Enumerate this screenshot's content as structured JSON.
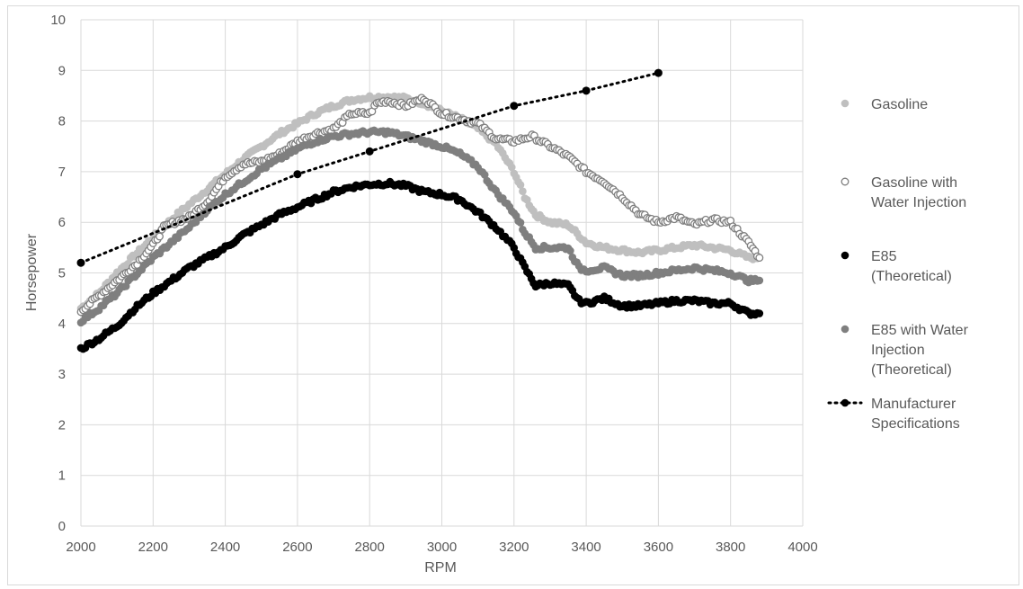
{
  "chart_data": {
    "type": "scatter",
    "title": "",
    "xlabel": "RPM",
    "ylabel": "Horsepower",
    "xlim": [
      2000,
      4000
    ],
    "ylim": [
      0,
      10
    ],
    "x_ticks": [
      "2000",
      "2200",
      "2400",
      "2600",
      "2800",
      "3000",
      "3200",
      "3400",
      "3600",
      "3800",
      "4000"
    ],
    "y_ticks": [
      "0",
      "1",
      "2",
      "3",
      "4",
      "5",
      "6",
      "7",
      "8",
      "9",
      "10"
    ],
    "grid": true,
    "legend_position": "right",
    "series": [
      {
        "name": "Gasoline",
        "marker": "filled-circle",
        "color": "#bfbfbf",
        "points": [
          [
            2000,
            4.3
          ],
          [
            2050,
            4.6
          ],
          [
            2100,
            5.0
          ],
          [
            2150,
            5.35
          ],
          [
            2200,
            5.7
          ],
          [
            2250,
            6.05
          ],
          [
            2300,
            6.35
          ],
          [
            2350,
            6.65
          ],
          [
            2400,
            6.95
          ],
          [
            2450,
            7.25
          ],
          [
            2500,
            7.5
          ],
          [
            2550,
            7.75
          ],
          [
            2600,
            7.95
          ],
          [
            2650,
            8.15
          ],
          [
            2700,
            8.3
          ],
          [
            2750,
            8.42
          ],
          [
            2800,
            8.47
          ],
          [
            2850,
            8.48
          ],
          [
            2900,
            8.45
          ],
          [
            2950,
            8.35
          ],
          [
            3000,
            8.2
          ],
          [
            3050,
            8.05
          ],
          [
            3100,
            7.85
          ],
          [
            3150,
            7.55
          ],
          [
            3200,
            7.0
          ],
          [
            3230,
            6.5
          ],
          [
            3260,
            6.15
          ],
          [
            3300,
            6.0
          ],
          [
            3350,
            5.95
          ],
          [
            3400,
            5.6
          ],
          [
            3450,
            5.5
          ],
          [
            3500,
            5.45
          ],
          [
            3550,
            5.4
          ],
          [
            3600,
            5.45
          ],
          [
            3650,
            5.5
          ],
          [
            3700,
            5.55
          ],
          [
            3750,
            5.5
          ],
          [
            3800,
            5.45
          ],
          [
            3850,
            5.3
          ],
          [
            3880,
            5.3
          ]
        ]
      },
      {
        "name": "Gasoline with Water Injection",
        "marker": "open-circle",
        "color": "#7f7f7f",
        "points": [
          [
            2000,
            4.25
          ],
          [
            2050,
            4.55
          ],
          [
            2100,
            4.85
          ],
          [
            2150,
            5.15
          ],
          [
            2200,
            5.55
          ],
          [
            2230,
            5.9
          ],
          [
            2260,
            6.0
          ],
          [
            2300,
            6.1
          ],
          [
            2350,
            6.4
          ],
          [
            2400,
            6.9
          ],
          [
            2450,
            7.15
          ],
          [
            2500,
            7.2
          ],
          [
            2550,
            7.35
          ],
          [
            2600,
            7.6
          ],
          [
            2650,
            7.75
          ],
          [
            2700,
            7.85
          ],
          [
            2750,
            8.15
          ],
          [
            2800,
            8.15
          ],
          [
            2820,
            8.35
          ],
          [
            2850,
            8.4
          ],
          [
            2900,
            8.3
          ],
          [
            2950,
            8.45
          ],
          [
            3000,
            8.15
          ],
          [
            3050,
            8.05
          ],
          [
            3100,
            7.95
          ],
          [
            3150,
            7.65
          ],
          [
            3200,
            7.6
          ],
          [
            3250,
            7.7
          ],
          [
            3300,
            7.5
          ],
          [
            3350,
            7.3
          ],
          [
            3400,
            7.0
          ],
          [
            3450,
            6.8
          ],
          [
            3500,
            6.5
          ],
          [
            3550,
            6.15
          ],
          [
            3600,
            6.0
          ],
          [
            3650,
            6.1
          ],
          [
            3700,
            5.95
          ],
          [
            3750,
            6.05
          ],
          [
            3800,
            6.0
          ],
          [
            3850,
            5.6
          ],
          [
            3880,
            5.3
          ]
        ]
      },
      {
        "name": "E85 (Theoretical)",
        "marker": "filled-circle",
        "color": "#000000",
        "points": [
          [
            2000,
            3.5
          ],
          [
            2050,
            3.7
          ],
          [
            2100,
            3.95
          ],
          [
            2150,
            4.3
          ],
          [
            2200,
            4.6
          ],
          [
            2250,
            4.85
          ],
          [
            2300,
            5.1
          ],
          [
            2350,
            5.3
          ],
          [
            2400,
            5.5
          ],
          [
            2450,
            5.75
          ],
          [
            2500,
            5.95
          ],
          [
            2550,
            6.15
          ],
          [
            2600,
            6.3
          ],
          [
            2650,
            6.45
          ],
          [
            2700,
            6.6
          ],
          [
            2750,
            6.7
          ],
          [
            2800,
            6.75
          ],
          [
            2850,
            6.77
          ],
          [
            2900,
            6.72
          ],
          [
            2950,
            6.6
          ],
          [
            3000,
            6.55
          ],
          [
            3050,
            6.45
          ],
          [
            3100,
            6.2
          ],
          [
            3150,
            5.9
          ],
          [
            3200,
            5.5
          ],
          [
            3230,
            5.1
          ],
          [
            3260,
            4.75
          ],
          [
            3300,
            4.8
          ],
          [
            3350,
            4.75
          ],
          [
            3380,
            4.45
          ],
          [
            3400,
            4.4
          ],
          [
            3450,
            4.5
          ],
          [
            3500,
            4.35
          ],
          [
            3550,
            4.35
          ],
          [
            3600,
            4.4
          ],
          [
            3650,
            4.45
          ],
          [
            3700,
            4.45
          ],
          [
            3750,
            4.4
          ],
          [
            3800,
            4.4
          ],
          [
            3850,
            4.2
          ],
          [
            3880,
            4.2
          ]
        ]
      },
      {
        "name": "E85 with Water Injection (Theoretical)",
        "marker": "filled-circle",
        "color": "#7f7f7f",
        "points": [
          [
            2000,
            4.05
          ],
          [
            2050,
            4.3
          ],
          [
            2100,
            4.6
          ],
          [
            2150,
            4.95
          ],
          [
            2200,
            5.3
          ],
          [
            2250,
            5.6
          ],
          [
            2300,
            5.9
          ],
          [
            2350,
            6.25
          ],
          [
            2400,
            6.55
          ],
          [
            2450,
            6.8
          ],
          [
            2500,
            7.05
          ],
          [
            2550,
            7.25
          ],
          [
            2600,
            7.45
          ],
          [
            2650,
            7.6
          ],
          [
            2700,
            7.7
          ],
          [
            2750,
            7.75
          ],
          [
            2800,
            7.78
          ],
          [
            2850,
            7.78
          ],
          [
            2900,
            7.7
          ],
          [
            2950,
            7.6
          ],
          [
            3000,
            7.5
          ],
          [
            3050,
            7.35
          ],
          [
            3100,
            7.1
          ],
          [
            3150,
            6.6
          ],
          [
            3200,
            6.2
          ],
          [
            3230,
            5.8
          ],
          [
            3260,
            5.5
          ],
          [
            3300,
            5.5
          ],
          [
            3350,
            5.5
          ],
          [
            3380,
            5.1
          ],
          [
            3400,
            5.05
          ],
          [
            3450,
            5.1
          ],
          [
            3500,
            4.95
          ],
          [
            3550,
            4.95
          ],
          [
            3600,
            5.0
          ],
          [
            3650,
            5.05
          ],
          [
            3700,
            5.1
          ],
          [
            3750,
            5.05
          ],
          [
            3800,
            5.0
          ],
          [
            3850,
            4.85
          ],
          [
            3880,
            4.85
          ]
        ]
      },
      {
        "name": "Manufacturer Specifications",
        "marker": "dotted-line",
        "color": "#000000",
        "points": [
          [
            2000,
            5.2
          ],
          [
            2600,
            6.95
          ],
          [
            2800,
            7.4
          ],
          [
            3200,
            8.3
          ],
          [
            3400,
            8.6
          ],
          [
            3600,
            8.95
          ]
        ]
      }
    ],
    "legend": [
      {
        "lines": [
          "Gasoline"
        ],
        "marker": "filled-circle",
        "color": "#bfbfbf"
      },
      {
        "lines": [
          "Gasoline with",
          "Water Injection"
        ],
        "marker": "open-circle",
        "color": "#7f7f7f"
      },
      {
        "lines": [
          "E85",
          "(Theoretical)"
        ],
        "marker": "filled-circle",
        "color": "#000000"
      },
      {
        "lines": [
          "E85 with Water",
          "Injection",
          "(Theoretical)"
        ],
        "marker": "filled-circle",
        "color": "#7f7f7f"
      },
      {
        "lines": [
          "Manufacturer",
          "Specifications"
        ],
        "marker": "dotted-line",
        "color": "#000000"
      }
    ]
  }
}
